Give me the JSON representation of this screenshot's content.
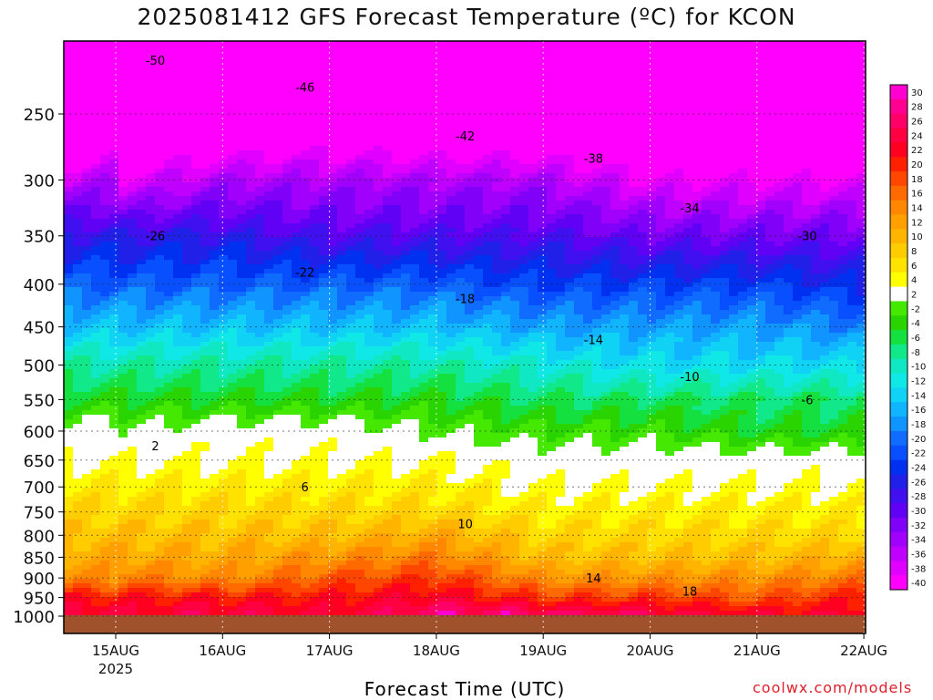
{
  "chart_data": {
    "type": "heatmap",
    "title": "2025081412 GFS Forecast Temperature (ºC) for KCON",
    "xlabel": "Forecast Time (UTC)",
    "ylabel": "",
    "y_scale": "log-pressure",
    "y_ticks": [
      250,
      300,
      350,
      400,
      450,
      500,
      550,
      600,
      650,
      700,
      750,
      800,
      850,
      900,
      950,
      1000
    ],
    "x_ticks": [
      "15AUG",
      "16AUG",
      "17AUG",
      "18AUG",
      "19AUG",
      "20AUG",
      "21AUG",
      "22AUG"
    ],
    "x_tick_sublabel": "2025",
    "grid": true,
    "legend": "right colorbar",
    "colorbar": {
      "labels": [
        30,
        28,
        26,
        24,
        22,
        20,
        18,
        16,
        14,
        12,
        10,
        8,
        6,
        4,
        2,
        -2,
        -4,
        -6,
        -8,
        -10,
        -12,
        -14,
        -16,
        -18,
        -20,
        -22,
        -24,
        -26,
        -28,
        -30,
        -32,
        -34,
        -36,
        -38,
        -40
      ],
      "colors": [
        "#ff00d0",
        "#ff0090",
        "#ff0068",
        "#ff0040",
        "#ff0020",
        "#ff2000",
        "#ff4600",
        "#ff6a00",
        "#ff8800",
        "#ffa000",
        "#ffb400",
        "#ffcc00",
        "#ffe200",
        "#ffff00",
        "#ffffff",
        "#44e800",
        "#2ad400",
        "#14e040",
        "#10e88a",
        "#10e8c4",
        "#10e8e8",
        "#10d2f4",
        "#10b4ff",
        "#1094ff",
        "#106cff",
        "#0850ff",
        "#0030f0",
        "#2020e8",
        "#4010f0",
        "#6000f4",
        "#8000f8",
        "#a000fc",
        "#c000ff",
        "#e000ff",
        "#ff00ff"
      ]
    },
    "contour_labels": [
      {
        "value": -50,
        "label": "-50"
      },
      {
        "value": -46,
        "label": "-46"
      },
      {
        "value": -42,
        "label": "-42"
      },
      {
        "value": -38,
        "label": "-38"
      },
      {
        "value": -34,
        "label": "-34"
      },
      {
        "value": -30,
        "label": "-30"
      },
      {
        "value": -26,
        "label": "-26"
      },
      {
        "value": -22,
        "label": "-22"
      },
      {
        "value": -18,
        "label": "-18"
      },
      {
        "value": -14,
        "label": "-14"
      },
      {
        "value": -10,
        "label": "-10"
      },
      {
        "value": -6,
        "label": "-6"
      },
      {
        "value": 2,
        "label": "2"
      },
      {
        "value": 6,
        "label": "6"
      },
      {
        "value": 10,
        "label": "10"
      },
      {
        "value": 14,
        "label": "14"
      },
      {
        "value": 18,
        "label": "18"
      }
    ],
    "levels": [
      {
        "p": 1000,
        "t": [
          24,
          26,
          24,
          28,
          28,
          26,
          24,
          24
        ]
      },
      {
        "p": 950,
        "t": [
          22,
          22,
          22,
          24,
          20,
          20,
          18,
          22
        ]
      },
      {
        "p": 900,
        "t": [
          16,
          14,
          18,
          20,
          14,
          14,
          14,
          16
        ]
      },
      {
        "p": 850,
        "t": [
          12,
          12,
          14,
          16,
          10,
          10,
          10,
          12
        ]
      },
      {
        "p": 800,
        "t": [
          10,
          10,
          10,
          12,
          8,
          8,
          8,
          8
        ]
      },
      {
        "p": 750,
        "t": [
          8,
          8,
          8,
          8,
          6,
          6,
          6,
          6
        ]
      },
      {
        "p": 700,
        "t": [
          6,
          6,
          6,
          6,
          4,
          4,
          4,
          4
        ]
      },
      {
        "p": 650,
        "t": [
          4,
          4,
          4,
          4,
          2,
          2,
          2,
          2
        ]
      },
      {
        "p": 600,
        "t": [
          0,
          2,
          2,
          0,
          -2,
          -2,
          -4,
          -4
        ]
      },
      {
        "p": 550,
        "t": [
          -4,
          -4,
          -4,
          -4,
          -6,
          -6,
          -6,
          -6
        ]
      },
      {
        "p": 500,
        "t": [
          -8,
          -8,
          -8,
          -8,
          -10,
          -12,
          -12,
          -12
        ]
      },
      {
        "p": 450,
        "t": [
          -14,
          -14,
          -14,
          -14,
          -16,
          -16,
          -16,
          -18
        ]
      },
      {
        "p": 400,
        "t": [
          -20,
          -20,
          -20,
          -20,
          -22,
          -22,
          -22,
          -24
        ]
      },
      {
        "p": 350,
        "t": [
          -26,
          -26,
          -28,
          -28,
          -28,
          -30,
          -30,
          -30
        ]
      },
      {
        "p": 300,
        "t": [
          -38,
          -34,
          -34,
          -34,
          -34,
          -38,
          -38,
          -38
        ]
      },
      {
        "p": 250,
        "t": [
          -46,
          -46,
          -44,
          -46,
          -46,
          -46,
          -46,
          -46
        ]
      },
      {
        "p": 200,
        "t": [
          -52,
          -52,
          -50,
          -50,
          -52,
          -52,
          -52,
          -52
        ]
      }
    ]
  },
  "credit": "coolwx.com/models"
}
